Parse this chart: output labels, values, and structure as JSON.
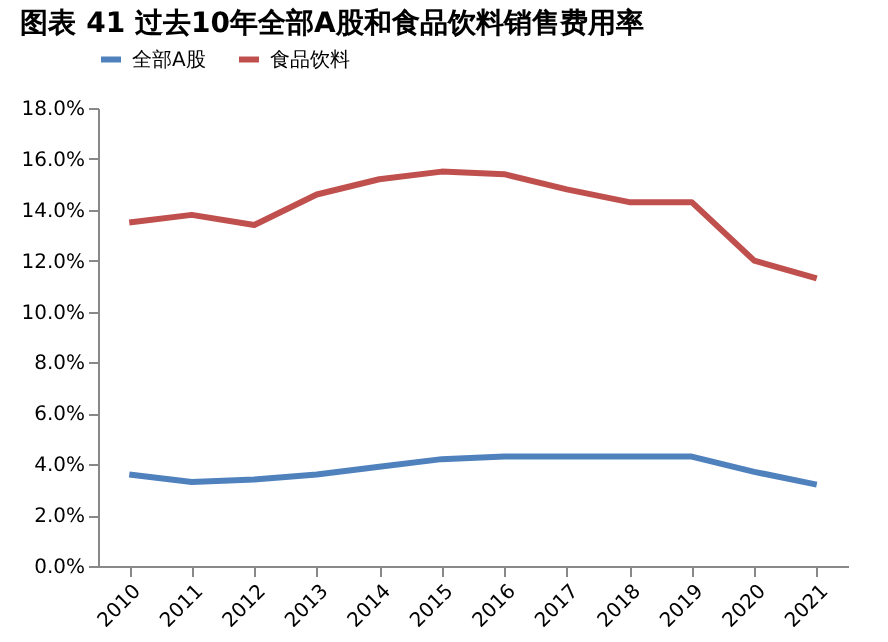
{
  "chart_data": {
    "type": "line",
    "title": "图表 41 过去10年全部A股和食品饮料销售费用率",
    "categories": [
      "2010",
      "2011",
      "2012",
      "2013",
      "2014",
      "2015",
      "2016",
      "2017",
      "2018",
      "2019",
      "2020",
      "2021"
    ],
    "series": [
      {
        "name": "全部A股",
        "color": "#4f81bd",
        "values": [
          3.6,
          3.3,
          3.4,
          3.6,
          3.9,
          4.2,
          4.3,
          4.3,
          4.3,
          4.3,
          3.7,
          3.2
        ]
      },
      {
        "name": "食品饮料",
        "color": "#c0504d",
        "values": [
          13.5,
          13.8,
          13.4,
          14.6,
          15.2,
          15.5,
          15.4,
          14.8,
          14.3,
          14.3,
          12.0,
          11.3
        ]
      }
    ],
    "ylim": [
      0,
      18
    ],
    "yticks": [
      {
        "value": 0,
        "label": "0.0%"
      },
      {
        "value": 2,
        "label": "2.0%"
      },
      {
        "value": 4,
        "label": "4.0%"
      },
      {
        "value": 6,
        "label": "6.0%"
      },
      {
        "value": 8,
        "label": "8.0%"
      },
      {
        "value": 10,
        "label": "10.0%"
      },
      {
        "value": 12,
        "label": "12.0%"
      },
      {
        "value": 14,
        "label": "14.0%"
      },
      {
        "value": 16,
        "label": "16.0%"
      },
      {
        "value": 18,
        "label": "18.0%"
      }
    ],
    "grid": false,
    "legend": "top",
    "marker": "none",
    "line_style": "solid"
  }
}
